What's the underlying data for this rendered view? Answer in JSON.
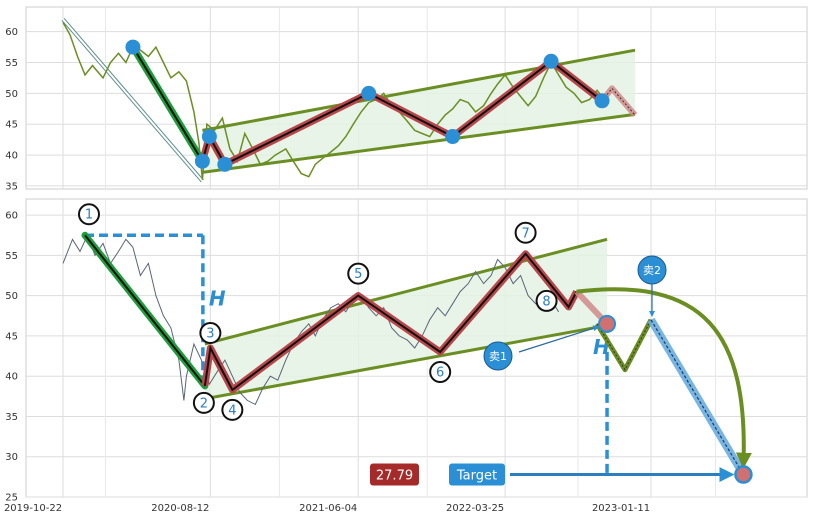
{
  "chart_data": [
    {
      "type": "line",
      "ylim": [
        34.5,
        64
      ],
      "yticks": [
        35,
        40,
        45,
        50,
        55,
        60
      ],
      "grid": true,
      "price_series": [
        [
          "2019-10-22",
          61.5
        ],
        [
          "2019-11-05",
          59.5
        ],
        [
          "2019-11-20",
          56.0
        ],
        [
          "2019-12-05",
          53.0
        ],
        [
          "2019-12-20",
          54.5
        ],
        [
          "2020-01-10",
          52.5
        ],
        [
          "2020-01-25",
          55.0
        ],
        [
          "2020-02-10",
          56.5
        ],
        [
          "2020-02-25",
          55.0
        ],
        [
          "2020-03-10",
          57.5
        ],
        [
          "2020-03-25",
          57.0
        ],
        [
          "2020-04-10",
          56.0
        ],
        [
          "2020-04-25",
          57.5
        ],
        [
          "2020-05-10",
          55.0
        ],
        [
          "2020-05-25",
          52.5
        ],
        [
          "2020-06-10",
          53.5
        ],
        [
          "2020-06-25",
          52.0
        ],
        [
          "2020-07-10",
          47.0
        ],
        [
          "2020-07-20",
          42.0
        ],
        [
          "2020-07-27",
          36.0
        ],
        [
          "2020-08-05",
          45.0
        ],
        [
          "2020-08-20",
          44.0
        ],
        [
          "2020-09-05",
          46.0
        ],
        [
          "2020-09-20",
          41.0
        ],
        [
          "2020-10-05",
          39.0
        ],
        [
          "2020-10-20",
          43.5
        ],
        [
          "2020-11-05",
          41.0
        ],
        [
          "2020-11-20",
          38.5
        ],
        [
          "2020-12-05",
          39.0
        ],
        [
          "2020-12-20",
          40.0
        ],
        [
          "2021-01-10",
          41.0
        ],
        [
          "2021-01-25",
          39.0
        ],
        [
          "2021-02-10",
          37.0
        ],
        [
          "2021-02-25",
          36.5
        ],
        [
          "2021-03-10",
          38.5
        ],
        [
          "2021-03-25",
          39.5
        ],
        [
          "2021-04-10",
          40.5
        ],
        [
          "2021-04-25",
          41.5
        ],
        [
          "2021-05-10",
          43.0
        ],
        [
          "2021-05-25",
          45.0
        ],
        [
          "2021-06-10",
          47.0
        ],
        [
          "2021-06-25",
          48.5
        ],
        [
          "2021-07-10",
          49.0
        ],
        [
          "2021-07-25",
          50.0
        ],
        [
          "2021-08-10",
          48.0
        ],
        [
          "2021-08-25",
          47.0
        ],
        [
          "2021-09-10",
          45.5
        ],
        [
          "2021-09-25",
          44.0
        ],
        [
          "2021-10-10",
          43.5
        ],
        [
          "2021-10-25",
          43.0
        ],
        [
          "2021-11-10",
          45.0
        ],
        [
          "2021-11-25",
          46.5
        ],
        [
          "2021-12-10",
          47.5
        ],
        [
          "2021-12-25",
          49.0
        ],
        [
          "2022-01-10",
          48.5
        ],
        [
          "2022-01-25",
          47.0
        ],
        [
          "2022-02-10",
          48.0
        ],
        [
          "2022-02-25",
          50.0
        ],
        [
          "2022-03-10",
          51.5
        ],
        [
          "2022-03-25",
          53.0
        ],
        [
          "2022-04-10",
          51.0
        ],
        [
          "2022-04-25",
          49.5
        ],
        [
          "2022-05-10",
          48.0
        ],
        [
          "2022-05-25",
          49.5
        ],
        [
          "2022-06-10",
          52.5
        ],
        [
          "2022-06-25",
          55.0
        ],
        [
          "2022-07-10",
          53.0
        ],
        [
          "2022-07-25",
          51.0
        ],
        [
          "2022-08-10",
          50.0
        ],
        [
          "2022-08-25",
          48.5
        ],
        [
          "2022-09-10",
          49.0
        ],
        [
          "2022-09-25",
          50.5
        ],
        [
          "2022-10-10",
          49.0
        ]
      ],
      "wave_path": [
        [
          "2020-03-10",
          57.5
        ],
        [
          "2020-07-27",
          39.0
        ],
        [
          "2020-08-10",
          43.0
        ],
        [
          "2020-09-10",
          38.5
        ],
        [
          "2021-06-25",
          50.0
        ],
        [
          "2021-12-10",
          43.0
        ],
        [
          "2022-06-25",
          55.2
        ],
        [
          "2022-10-05",
          48.8
        ]
      ],
      "wave_projection": [
        [
          "2022-10-05",
          48.8
        ],
        [
          "2022-10-25",
          50.8
        ],
        [
          "2022-12-10",
          46.5
        ]
      ],
      "wave_points": [
        [
          "2020-03-10",
          57.5
        ],
        [
          "2020-07-27",
          39.0
        ],
        [
          "2020-08-10",
          43.0
        ],
        [
          "2020-09-10",
          38.5
        ],
        [
          "2021-06-25",
          50.0
        ],
        [
          "2021-12-10",
          43.0
        ],
        [
          "2022-06-25",
          55.2
        ],
        [
          "2022-10-05",
          48.8
        ]
      ],
      "channel_upper": [
        [
          "2020-07-27",
          44.0
        ],
        [
          "2022-12-10",
          57.0
        ]
      ],
      "channel_lower": [
        [
          "2020-07-27",
          37.2
        ],
        [
          "2022-12-10",
          46.6
        ]
      ],
      "diagonal_arrow": [
        [
          "2019-10-22",
          62.0
        ],
        [
          "2020-07-27",
          35.8
        ]
      ]
    },
    {
      "type": "line",
      "ylim": [
        25,
        62
      ],
      "yticks": [
        25,
        30,
        35,
        40,
        45,
        50,
        55,
        60
      ],
      "xticks": [
        "2019-10-22",
        "2020-08-12",
        "2021-06-04",
        "2022-03-25",
        "2023-01-11"
      ],
      "grid": true,
      "price_series": [
        [
          "2019-10-22",
          54.0
        ],
        [
          "2019-11-10",
          57.0
        ],
        [
          "2019-11-25",
          55.5
        ],
        [
          "2019-12-10",
          57.5
        ],
        [
          "2019-12-25",
          55.0
        ],
        [
          "2020-01-10",
          56.5
        ],
        [
          "2020-01-25",
          54.0
        ],
        [
          "2020-02-10",
          55.5
        ],
        [
          "2020-02-25",
          57.0
        ],
        [
          "2020-03-10",
          56.0
        ],
        [
          "2020-03-25",
          52.5
        ],
        [
          "2020-04-10",
          54.0
        ],
        [
          "2020-04-25",
          50.0
        ],
        [
          "2020-05-10",
          47.5
        ],
        [
          "2020-05-25",
          46.0
        ],
        [
          "2020-06-10",
          42.0
        ],
        [
          "2020-06-20",
          37.0
        ],
        [
          "2020-06-25",
          40.0
        ],
        [
          "2020-07-10",
          44.0
        ],
        [
          "2020-07-25",
          42.0
        ],
        [
          "2020-08-10",
          39.0
        ],
        [
          "2020-08-25",
          40.5
        ],
        [
          "2020-09-10",
          42.0
        ],
        [
          "2020-09-25",
          40.0
        ],
        [
          "2020-10-10",
          38.0
        ],
        [
          "2020-10-25",
          37.0
        ],
        [
          "2020-11-10",
          36.5
        ],
        [
          "2020-11-25",
          38.5
        ],
        [
          "2020-12-10",
          40.0
        ],
        [
          "2020-12-25",
          39.5
        ],
        [
          "2021-01-10",
          42.0
        ],
        [
          "2021-01-25",
          44.0
        ],
        [
          "2021-02-10",
          45.5
        ],
        [
          "2021-02-25",
          46.5
        ],
        [
          "2021-03-10",
          45.0
        ],
        [
          "2021-03-25",
          47.0
        ],
        [
          "2021-04-10",
          48.5
        ],
        [
          "2021-04-25",
          49.0
        ],
        [
          "2021-05-10",
          48.0
        ],
        [
          "2021-05-25",
          49.5
        ],
        [
          "2021-06-10",
          50.0
        ],
        [
          "2021-06-25",
          48.5
        ],
        [
          "2021-07-10",
          47.5
        ],
        [
          "2021-07-25",
          48.5
        ],
        [
          "2021-08-10",
          46.0
        ],
        [
          "2021-08-25",
          45.0
        ],
        [
          "2021-09-10",
          44.5
        ],
        [
          "2021-09-25",
          43.5
        ],
        [
          "2021-10-10",
          45.0
        ],
        [
          "2021-10-25",
          47.0
        ],
        [
          "2021-11-10",
          48.5
        ],
        [
          "2021-11-25",
          47.5
        ],
        [
          "2021-12-10",
          49.0
        ],
        [
          "2021-12-25",
          50.5
        ],
        [
          "2022-01-10",
          51.5
        ],
        [
          "2022-01-25",
          53.0
        ],
        [
          "2022-02-10",
          51.5
        ],
        [
          "2022-02-25",
          52.5
        ],
        [
          "2022-03-10",
          54.5
        ],
        [
          "2022-03-25",
          53.5
        ],
        [
          "2022-04-10",
          51.5
        ],
        [
          "2022-04-25",
          52.5
        ],
        [
          "2022-05-10",
          50.0
        ],
        [
          "2022-05-25",
          49.0
        ],
        [
          "2022-06-10",
          48.5
        ],
        [
          "2022-06-25",
          49.5
        ],
        [
          "2022-07-10",
          48.0
        ]
      ],
      "wave_path": [
        [
          "2019-12-05",
          57.5
        ],
        [
          "2020-08-01",
          38.8
        ],
        [
          "2020-08-12",
          43.5
        ],
        [
          "2020-09-25",
          38.3
        ],
        [
          "2021-06-04",
          50.0
        ],
        [
          "2021-11-15",
          43.0
        ],
        [
          "2022-05-05",
          55.2
        ],
        [
          "2022-07-30",
          48.6
        ],
        [
          "2022-08-15",
          50.5
        ]
      ],
      "wave_projection": [
        [
          "2022-08-15",
          50.5
        ],
        [
          "2022-09-25",
          46.5
        ],
        [
          "2022-11-20",
          40.8
        ],
        [
          "2023-01-11",
          47.0
        ]
      ],
      "drop_line": [
        [
          "2023-01-11",
          47.0
        ],
        [
          "2023-07-15",
          27.79
        ]
      ],
      "wave_labels": [
        {
          "label": "1",
          "date": "2019-12-05",
          "value": 57.5
        },
        {
          "label": "2",
          "date": "2020-08-01",
          "value": 38.8
        },
        {
          "label": "3",
          "date": "2020-08-12",
          "value": 43.5
        },
        {
          "label": "4",
          "date": "2020-09-25",
          "value": 38.3
        },
        {
          "label": "5",
          "date": "2021-06-04",
          "value": 50.0
        },
        {
          "label": "6",
          "date": "2021-11-15",
          "value": 43.0
        },
        {
          "label": "7",
          "date": "2022-05-05",
          "value": 55.2
        },
        {
          "label": "8",
          "date": "2022-07-30",
          "value": 48.6
        }
      ],
      "channel_upper": [
        [
          "2020-08-01",
          44.0
        ],
        [
          "2022-10-15",
          57.0
        ]
      ],
      "channel_lower": [
        [
          "2020-08-01",
          37.2
        ],
        [
          "2022-10-15",
          46.3
        ]
      ],
      "h_measure": {
        "top": 57.5,
        "bottom": 38.8,
        "label": "H"
      },
      "h_measure_2": {
        "top": 46.5,
        "bottom": 27.79,
        "label": "H"
      },
      "sell1": {
        "label": "卖1",
        "date": "2022-10-15",
        "value": 46.5
      },
      "sell2": {
        "label": "卖2",
        "date": "2023-01-11",
        "value": 47.0
      },
      "target": {
        "label": "Target",
        "value": 27.79,
        "value_label": "27.79",
        "date": "2023-07-15"
      },
      "colors": {
        "price": "#5a6478",
        "wave_outline": "#b8464a",
        "wave_core": "#111111",
        "impulse_green": "#1f9d3c",
        "channel": "#6b8e23",
        "channel_fill": "#e3f2e3",
        "marker_blue": "#2b8fd6",
        "value_box": "#a52a2a",
        "target_box": "#2b8fd6",
        "arrow_green": "#6b8e23"
      }
    }
  ]
}
